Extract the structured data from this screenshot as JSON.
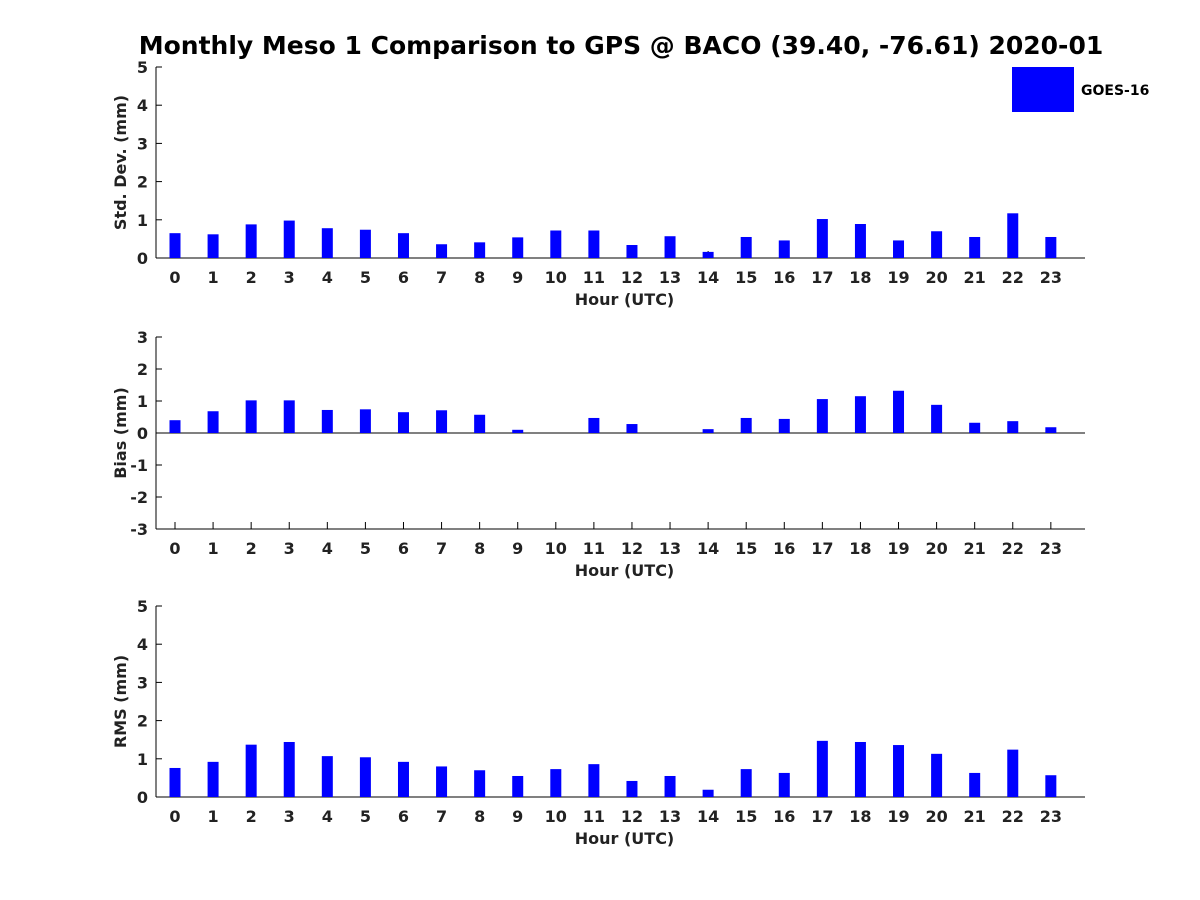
{
  "figure": {
    "title": "Monthly Meso 1 Comparison to GPS @ BACO (39.40, -76.61) 2020-01",
    "legend_label": "GOES-16",
    "legend_placement": "top-right",
    "bar_color": "#0000ff"
  },
  "chart_data": [
    {
      "type": "bar",
      "title": "",
      "xlabel": "Hour (UTC)",
      "ylabel": "Std. Dev. (mm)",
      "ylim": [
        0,
        5
      ],
      "yticks": [
        0,
        1,
        2,
        3,
        4,
        5
      ],
      "grid": false,
      "categories": [
        "0",
        "1",
        "2",
        "3",
        "4",
        "5",
        "6",
        "7",
        "8",
        "9",
        "10",
        "11",
        "12",
        "13",
        "14",
        "15",
        "16",
        "17",
        "18",
        "19",
        "20",
        "21",
        "22",
        "23"
      ],
      "series": [
        {
          "name": "GOES-16",
          "values": [
            0.65,
            0.62,
            0.88,
            0.98,
            0.78,
            0.74,
            0.65,
            0.36,
            0.41,
            0.54,
            0.72,
            0.72,
            0.34,
            0.57,
            0.16,
            0.55,
            0.46,
            1.02,
            0.89,
            0.46,
            0.7,
            0.55,
            1.17,
            0.55
          ]
        }
      ]
    },
    {
      "type": "bar",
      "title": "",
      "xlabel": "Hour (UTC)",
      "ylabel": "Bias (mm)",
      "ylim": [
        -3,
        3
      ],
      "yticks": [
        -3,
        -2,
        -1,
        0,
        1,
        2,
        3
      ],
      "grid": false,
      "categories": [
        "0",
        "1",
        "2",
        "3",
        "4",
        "5",
        "6",
        "7",
        "8",
        "9",
        "10",
        "11",
        "12",
        "13",
        "14",
        "15",
        "16",
        "17",
        "18",
        "19",
        "20",
        "21",
        "22",
        "23"
      ],
      "series": [
        {
          "name": "GOES-16",
          "values": [
            0.4,
            0.68,
            1.02,
            1.02,
            0.72,
            0.74,
            0.65,
            0.71,
            0.57,
            0.1,
            0.0,
            0.47,
            0.28,
            0.0,
            0.12,
            0.47,
            0.44,
            1.06,
            1.15,
            1.32,
            0.88,
            0.32,
            0.37,
            0.18
          ]
        }
      ]
    },
    {
      "type": "bar",
      "title": "",
      "xlabel": "Hour (UTC)",
      "ylabel": "RMS (mm)",
      "ylim": [
        0,
        5
      ],
      "yticks": [
        0,
        1,
        2,
        3,
        4,
        5
      ],
      "grid": false,
      "categories": [
        "0",
        "1",
        "2",
        "3",
        "4",
        "5",
        "6",
        "7",
        "8",
        "9",
        "10",
        "11",
        "12",
        "13",
        "14",
        "15",
        "16",
        "17",
        "18",
        "19",
        "20",
        "21",
        "22",
        "23"
      ],
      "series": [
        {
          "name": "GOES-16",
          "values": [
            0.76,
            0.92,
            1.37,
            1.44,
            1.07,
            1.04,
            0.92,
            0.8,
            0.7,
            0.55,
            0.73,
            0.86,
            0.42,
            0.55,
            0.19,
            0.73,
            0.63,
            1.47,
            1.44,
            1.36,
            1.13,
            0.63,
            1.24,
            0.57
          ]
        }
      ]
    }
  ]
}
